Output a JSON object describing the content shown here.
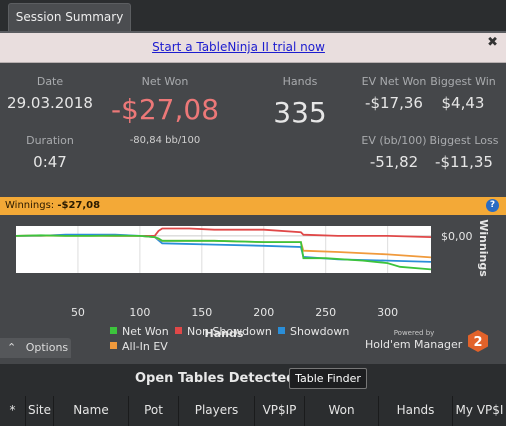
{
  "tab": {
    "label": "Session Summary"
  },
  "promo": {
    "link_text": "Start a TableNinja II trial now",
    "close_glyph": "✖"
  },
  "stats": {
    "date_label": "Date",
    "date_value": "29.03.2018",
    "duration_label": "Duration",
    "duration_value": "0:47",
    "net_won_label": "Net Won",
    "net_won_value": "-$27,08",
    "net_won_sub": "-80,84 bb/100",
    "hands_label": "Hands",
    "hands_value": "335",
    "ev_net_won_label": "EV Net Won",
    "ev_net_won_value": "-$17,36",
    "biggest_win_label": "Biggest Win",
    "biggest_win_value": "$4,43",
    "ev_bb100_label": "EV (bb/100)",
    "ev_bb100_value": "-51,82",
    "biggest_loss_label": "Biggest Loss",
    "biggest_loss_value": "-$11,35"
  },
  "winnings_bar": {
    "label": "Winnings:",
    "value": "-$27,08",
    "help_glyph": "?"
  },
  "chart_data": {
    "type": "line",
    "xlabel": "Hands",
    "ylabel": "Winnings",
    "x_ticks": [
      50,
      100,
      150,
      200,
      250,
      300
    ],
    "y_ticks": [
      "$0,00"
    ],
    "xlim": [
      0,
      335
    ],
    "series": [
      {
        "name": "Net Won",
        "color": "#3cc43c",
        "points": [
          [
            0,
            0
          ],
          [
            20,
            0.5
          ],
          [
            40,
            0
          ],
          [
            60,
            0
          ],
          [
            80,
            0.2
          ],
          [
            100,
            0
          ],
          [
            112,
            -1
          ],
          [
            115,
            -2
          ],
          [
            118,
            -4
          ],
          [
            160,
            -4
          ],
          [
            200,
            -5
          ],
          [
            230,
            -5
          ],
          [
            232,
            -18
          ],
          [
            250,
            -18
          ],
          [
            280,
            -20
          ],
          [
            300,
            -22
          ],
          [
            310,
            -25
          ],
          [
            335,
            -27.08
          ]
        ]
      },
      {
        "name": "Non Showdown",
        "color": "#e04848",
        "points": [
          [
            0,
            0
          ],
          [
            20,
            0.3
          ],
          [
            40,
            0.6
          ],
          [
            60,
            0.3
          ],
          [
            80,
            0.1
          ],
          [
            100,
            0
          ],
          [
            112,
            0
          ],
          [
            115,
            4
          ],
          [
            118,
            6
          ],
          [
            140,
            6
          ],
          [
            160,
            5
          ],
          [
            200,
            5
          ],
          [
            230,
            3
          ],
          [
            232,
            1
          ],
          [
            260,
            0
          ],
          [
            300,
            0
          ],
          [
            335,
            -1
          ]
        ]
      },
      {
        "name": "Showdown",
        "color": "#2a8ed8",
        "points": [
          [
            0,
            0
          ],
          [
            20,
            0
          ],
          [
            40,
            1
          ],
          [
            60,
            1
          ],
          [
            80,
            1
          ],
          [
            100,
            0
          ],
          [
            112,
            -1
          ],
          [
            118,
            -6
          ],
          [
            160,
            -7
          ],
          [
            200,
            -8
          ],
          [
            230,
            -9
          ],
          [
            232,
            -17
          ],
          [
            260,
            -19
          ],
          [
            300,
            -20
          ],
          [
            335,
            -21
          ]
        ]
      },
      {
        "name": "All-In EV",
        "color": "#f09a3c",
        "points": [
          [
            0,
            0
          ],
          [
            20,
            0.2
          ],
          [
            40,
            0
          ],
          [
            60,
            0
          ],
          [
            80,
            0.1
          ],
          [
            100,
            0
          ],
          [
            112,
            -1
          ],
          [
            118,
            -4
          ],
          [
            160,
            -4
          ],
          [
            200,
            -5
          ],
          [
            230,
            -5
          ],
          [
            232,
            -12
          ],
          [
            260,
            -13
          ],
          [
            300,
            -15
          ],
          [
            335,
            -17.36
          ]
        ]
      }
    ]
  },
  "options": {
    "label": "Options",
    "chevron_glyph": "⌃"
  },
  "legend": {
    "net_won": "Net Won",
    "non_showdown": "Non Showdown",
    "showdown": "Showdown",
    "all_in_ev": "All-In EV"
  },
  "brand": {
    "powered_by": "Powered by",
    "name": "Hold'em Manager",
    "number": "2"
  },
  "tables": {
    "title": "Open Tables Detected",
    "finder_button": "Table Finder",
    "columns": [
      "*",
      "Site",
      "Name",
      "Pot",
      "Players",
      "VP$IP",
      "Won",
      "Hands",
      "My VP$I"
    ]
  }
}
